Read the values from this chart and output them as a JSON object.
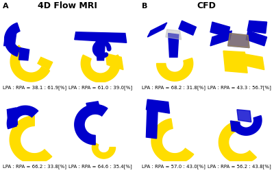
{
  "title_left": "4D Flow MRI",
  "title_right": "CFD",
  "label_A": "A",
  "label_B": "B",
  "background_color": "#ffffff",
  "title_fontsize": 9,
  "label_fontsize": 8,
  "caption_fontsize": 5.0,
  "captions": [
    [
      "LPA : RPA = 38.1 : 61.9[%]",
      "LPA : RPA = 61.0 : 39.0[%]",
      "LPA : RPA = 68.2 : 31.8[%]",
      "LPA : RPA = 43.3 : 56.7[%]"
    ],
    [
      "LPA : RPA = 66.2 : 33.8[%]",
      "LPA : RPA = 64.6 : 35.4[%]",
      "LPA : RPA = 57.0 : 43.0[%]",
      "LPA : RPA = 56.2 : 43.8[%]"
    ]
  ],
  "blue_color": "#0000cc",
  "yellow_color": "#ffdd00",
  "gray_color": "#bbbbbb"
}
